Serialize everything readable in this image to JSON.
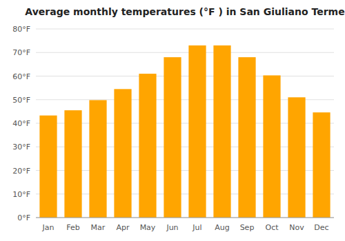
{
  "chart_data": {
    "type": "bar",
    "title": "Average monthly temperatures (°F ) in San Giuliano Terme",
    "categories": [
      "Jan",
      "Feb",
      "Mar",
      "Apr",
      "May",
      "Jun",
      "Jul",
      "Aug",
      "Sep",
      "Oct",
      "Nov",
      "Dec"
    ],
    "values": [
      43.3,
      45.5,
      49.8,
      54.5,
      61.0,
      68.0,
      73.0,
      73.0,
      68.0,
      60.3,
      51.0,
      44.6
    ],
    "color": "#FFA500",
    "ylim": [
      0,
      80
    ],
    "yticks": [
      {
        "value": 0,
        "label": "0°F"
      },
      {
        "value": 10,
        "label": "10°F"
      },
      {
        "value": 20,
        "label": "20°F"
      },
      {
        "value": 30,
        "label": "30°F"
      },
      {
        "value": 40,
        "label": "40°F"
      },
      {
        "value": 50,
        "label": "50°F"
      },
      {
        "value": 60,
        "label": "60°F"
      },
      {
        "value": 70,
        "label": "70°F"
      },
      {
        "value": 80,
        "label": "80°F"
      }
    ],
    "grid": true
  }
}
